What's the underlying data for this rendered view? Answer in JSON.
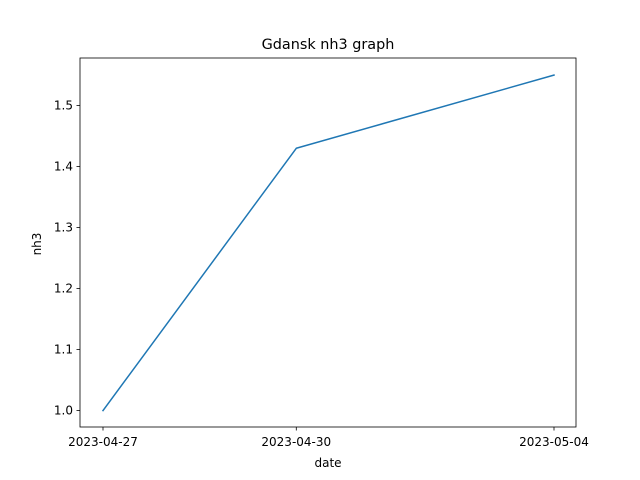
{
  "chart_data": {
    "type": "line",
    "title": "Gdansk nh3 graph",
    "xlabel": "date",
    "ylabel": "nh3",
    "x": [
      "2023-04-27",
      "2023-04-30",
      "2023-05-04"
    ],
    "series": [
      {
        "values": [
          1.0,
          1.43,
          1.55
        ],
        "color": "#1f77b4"
      }
    ],
    "ylim": [
      0.973,
      1.578
    ],
    "yticks": [
      "1.0",
      "1.1",
      "1.2",
      "1.3",
      "1.4",
      "1.5"
    ],
    "grid": false,
    "legend": "none"
  }
}
